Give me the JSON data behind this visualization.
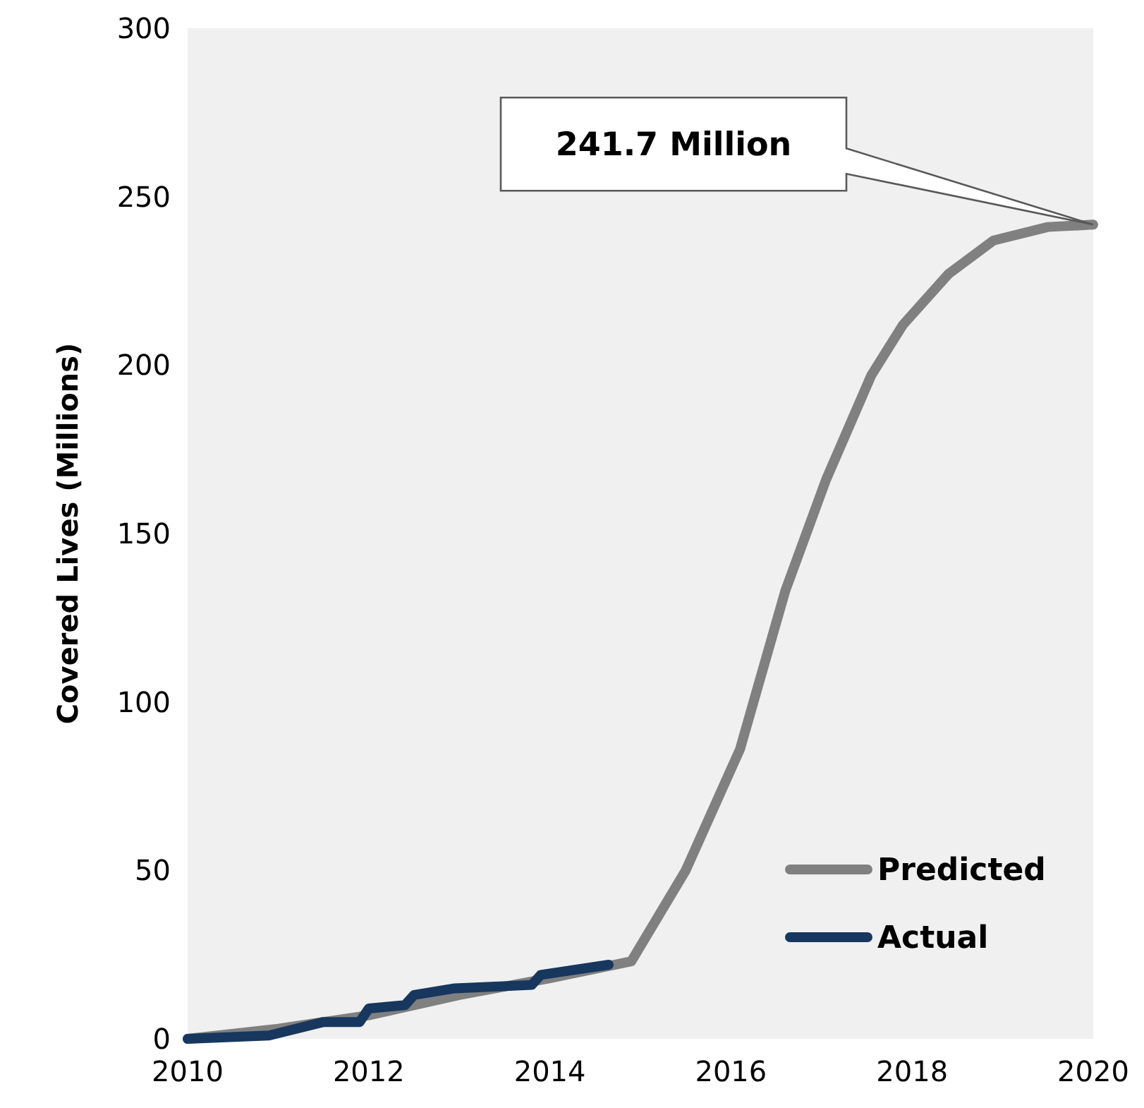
{
  "chart_data": {
    "type": "line",
    "ylabel": "Covered Lives (Millions)",
    "xlim": [
      2010,
      2020
    ],
    "xticks": [
      2010,
      2012,
      2014,
      2016,
      2018,
      2020
    ],
    "ylim": [
      0,
      300
    ],
    "yticks": [
      0,
      50,
      100,
      150,
      200,
      250,
      300
    ],
    "legend": "bottom right",
    "grid": false,
    "annotations": [
      "241.7 Million"
    ],
    "series": [
      {
        "name": "Predicted",
        "color": "#808080",
        "x": [
          2010,
          2011,
          2012,
          2013,
          2014,
          2014.9,
          2015.5,
          2016.1,
          2016.6,
          2017.05,
          2017.55,
          2017.9,
          2018.4,
          2018.9,
          2019.5,
          2020
        ],
        "values": [
          0,
          3,
          7,
          13,
          18,
          23,
          50,
          86,
          133,
          166,
          197,
          212,
          227,
          237,
          241,
          241.7
        ]
      },
      {
        "name": "Actual",
        "color": "#17375e",
        "x": [
          2010,
          2010.9,
          2011.5,
          2011.9,
          2012,
          2012.4,
          2012.5,
          2012.95,
          2013.8,
          2013.9,
          2014.65
        ],
        "values": [
          0,
          1,
          5,
          5,
          9,
          10,
          13,
          15,
          16,
          19,
          22
        ]
      }
    ]
  }
}
